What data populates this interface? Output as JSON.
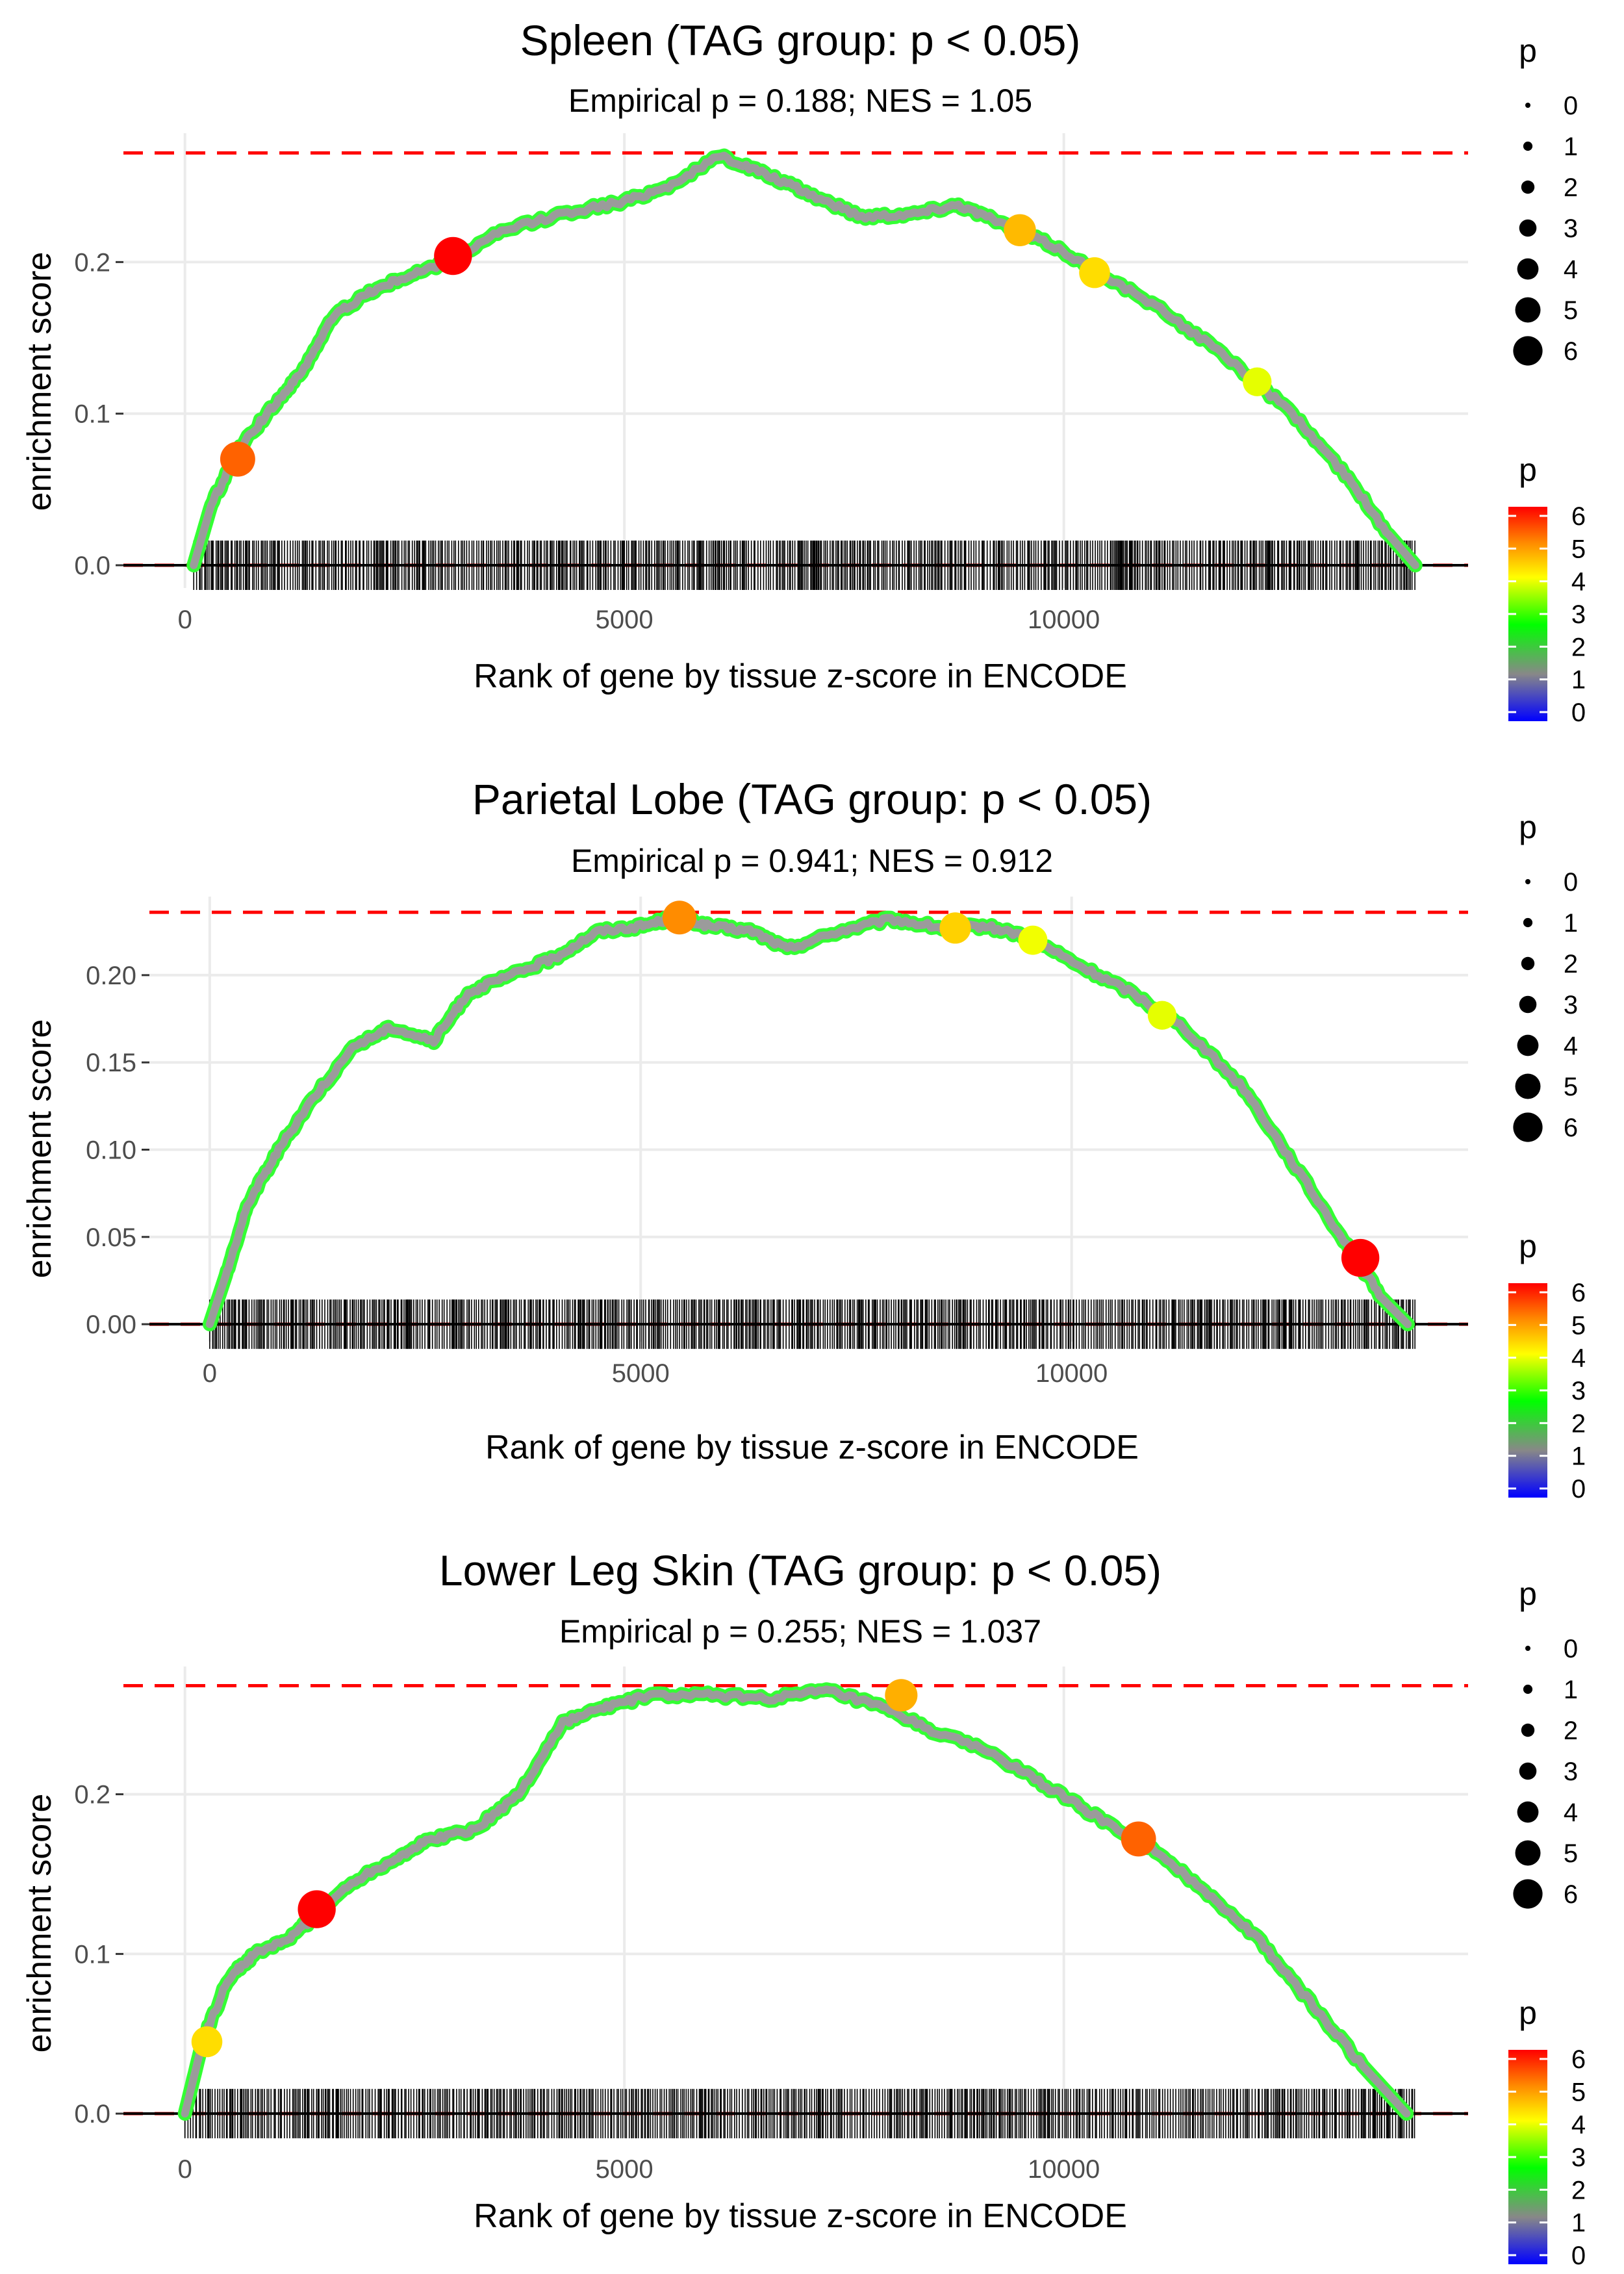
{
  "chart_data": [
    {
      "type": "line",
      "title": "Spleen (TAG group: p < 0.05)",
      "subtitle": "Empirical p = 0.188; NES = 1.05",
      "xlabel": "Rank of gene by tissue z-score in ENCODE",
      "ylabel": "enrichment score",
      "xlim": [
        -700,
        14600
      ],
      "ylim": [
        -0.015,
        0.285
      ],
      "x_ticks": [
        0,
        5000,
        10000
      ],
      "x_tick_labels": [
        "0",
        "5000",
        "10000"
      ],
      "y_ticks": [
        0.0,
        0.1,
        0.2
      ],
      "y_tick_labels": [
        "0.0",
        "0.1",
        "0.2"
      ],
      "max_es": 0.272,
      "n_genes": 14000,
      "series": [
        {
          "name": "enrichment score",
          "x": [
            100,
            300,
            600,
            1000,
            1300,
            1700,
            2100,
            2500,
            3000,
            3600,
            4300,
            5000,
            5500,
            6100,
            6600,
            7100,
            7700,
            8300,
            8800,
            9300,
            9900,
            10500,
            11200,
            11900,
            12600,
            13200,
            13700,
            14000
          ],
          "y": [
            0.0,
            0.04,
            0.075,
            0.105,
            0.125,
            0.165,
            0.18,
            0.19,
            0.2,
            0.22,
            0.232,
            0.24,
            0.25,
            0.27,
            0.258,
            0.245,
            0.23,
            0.232,
            0.238,
            0.225,
            0.21,
            0.19,
            0.165,
            0.135,
            0.1,
            0.06,
            0.02,
            0.0
          ]
        }
      ],
      "highlight_points": [
        {
          "x": 600,
          "y": 0.07,
          "p": 5.3
        },
        {
          "x": 3050,
          "y": 0.204,
          "p": 6.0
        },
        {
          "x": 9500,
          "y": 0.221,
          "p": 4.6
        },
        {
          "x": 10350,
          "y": 0.193,
          "p": 4.3
        },
        {
          "x": 12200,
          "y": 0.121,
          "p": 3.8
        }
      ]
    },
    {
      "type": "line",
      "title": "Parietal Lobe (TAG group: p < 0.05)",
      "subtitle": "Empirical p = 0.941; NES = 0.912",
      "xlabel": "Rank of gene by tissue z-score in ENCODE",
      "ylabel": "enrichment score",
      "xlim": [
        -700,
        14600
      ],
      "ylim": [
        -0.01,
        0.245
      ],
      "x_ticks": [
        0,
        5000,
        10000
      ],
      "x_tick_labels": [
        "0",
        "5000",
        "10000"
      ],
      "y_ticks": [
        0.0,
        0.05,
        0.1,
        0.15,
        0.2
      ],
      "y_tick_labels": [
        "0.00",
        "0.05",
        "0.10",
        "0.15",
        "0.20"
      ],
      "max_es": 0.236,
      "n_genes": 14000,
      "series": [
        {
          "name": "enrichment score",
          "x": [
            0,
            200,
            450,
            800,
            1200,
            1700,
            2100,
            2600,
            3000,
            3500,
            4000,
            4500,
            5000,
            5400,
            5800,
            6300,
            6700,
            7300,
            7900,
            8500,
            9000,
            9500,
            10100,
            10700,
            11300,
            12000,
            12600,
            13200,
            13600,
            13900
          ],
          "y": [
            0.0,
            0.03,
            0.07,
            0.1,
            0.13,
            0.16,
            0.17,
            0.162,
            0.19,
            0.2,
            0.21,
            0.225,
            0.228,
            0.233,
            0.228,
            0.225,
            0.215,
            0.225,
            0.232,
            0.227,
            0.228,
            0.222,
            0.205,
            0.19,
            0.17,
            0.135,
            0.09,
            0.045,
            0.015,
            0.0
          ]
        }
      ],
      "highlight_points": [
        {
          "x": 5450,
          "y": 0.233,
          "p": 5.0
        },
        {
          "x": 8650,
          "y": 0.227,
          "p": 4.4
        },
        {
          "x": 9550,
          "y": 0.22,
          "p": 3.9
        },
        {
          "x": 11050,
          "y": 0.177,
          "p": 3.8
        },
        {
          "x": 13350,
          "y": 0.038,
          "p": 6.0
        }
      ]
    },
    {
      "type": "line",
      "title": "Lower Leg Skin (TAG group: p < 0.05)",
      "subtitle": "Empirical p = 0.255; NES = 1.037",
      "xlabel": "Rank of gene by tissue z-score in ENCODE",
      "ylabel": "enrichment score",
      "xlim": [
        -700,
        14600
      ],
      "ylim": [
        -0.015,
        0.28
      ],
      "x_ticks": [
        0,
        5000,
        10000
      ],
      "x_tick_labels": [
        "0",
        "5000",
        "10000"
      ],
      "y_ticks": [
        0.0,
        0.1,
        0.2
      ],
      "y_tick_labels": [
        "0.0",
        "0.1",
        "0.2"
      ],
      "max_es": 0.268,
      "n_genes": 14000,
      "series": [
        {
          "name": "enrichment score",
          "x": [
            0,
            200,
            500,
            800,
            1200,
            1500,
            1900,
            2400,
            2800,
            3300,
            3800,
            4300,
            4800,
            5300,
            6000,
            6700,
            7300,
            7900,
            8500,
            9200,
            9800,
            10400,
            11000,
            11600,
            12200,
            12800,
            13400,
            13900
          ],
          "y": [
            0.0,
            0.045,
            0.085,
            0.1,
            0.11,
            0.125,
            0.145,
            0.16,
            0.172,
            0.178,
            0.2,
            0.245,
            0.255,
            0.262,
            0.262,
            0.26,
            0.265,
            0.255,
            0.24,
            0.225,
            0.205,
            0.185,
            0.165,
            0.14,
            0.11,
            0.07,
            0.03,
            0.0
          ]
        }
      ],
      "highlight_points": [
        {
          "x": 250,
          "y": 0.045,
          "p": 4.3
        },
        {
          "x": 1500,
          "y": 0.128,
          "p": 6.0
        },
        {
          "x": 8150,
          "y": 0.262,
          "p": 4.7
        },
        {
          "x": 10850,
          "y": 0.172,
          "p": 5.3
        }
      ]
    }
  ],
  "legend": {
    "size_title": "p",
    "size_labels": [
      "0",
      "1",
      "2",
      "3",
      "4",
      "5",
      "6"
    ],
    "color_title": "p",
    "color_labels": [
      "6",
      "5",
      "4",
      "3",
      "2",
      "1",
      "0"
    ]
  },
  "colors": {
    "line": "#9b9b9b",
    "rug": "#000000",
    "max_line": "#ff0000",
    "grid": "#ebebeb",
    "gradient": [
      "#ff0000",
      "#ff8c00",
      "#ffff00",
      "#00ff00",
      "#888888",
      "#0000ff"
    ]
  }
}
